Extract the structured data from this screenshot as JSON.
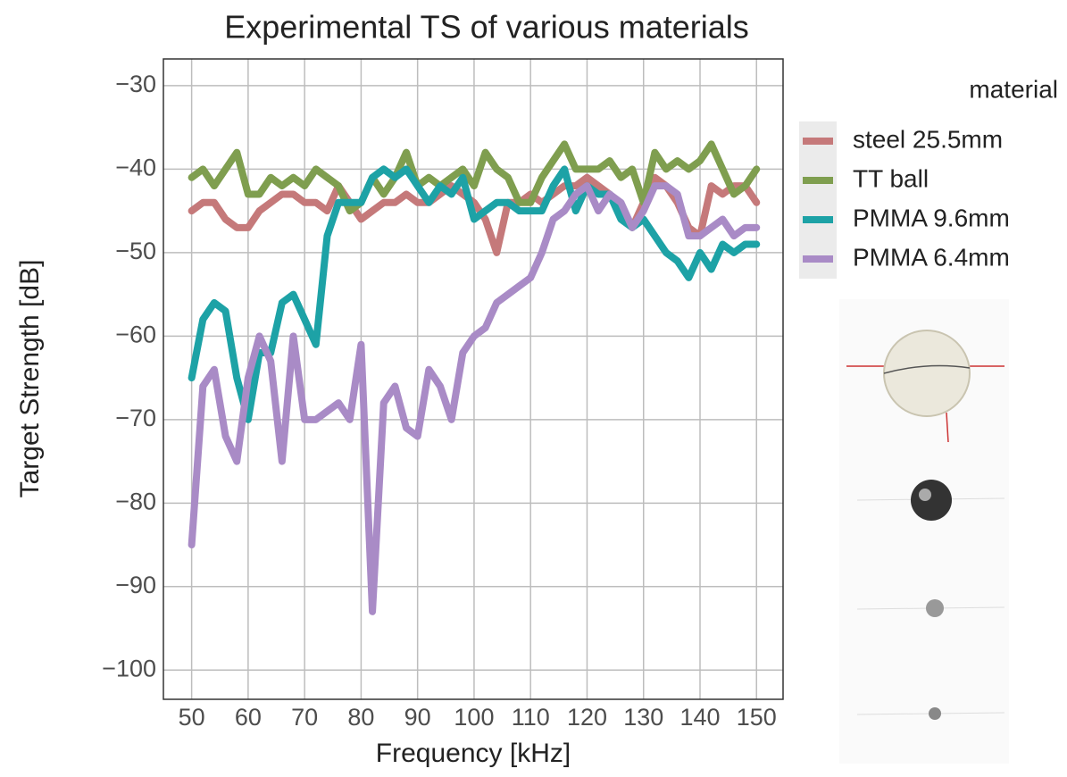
{
  "chart_data": {
    "type": "line",
    "title": "Experimental TS of various materials",
    "x_label": "Frequency [kHz]",
    "y_label": "Target Strength [dB]",
    "legend_title": "material",
    "grid": true,
    "xlim": [
      45,
      154.7
    ],
    "ylim": [
      -103.5,
      -26.8
    ],
    "xticks": [
      50,
      60,
      70,
      80,
      90,
      100,
      110,
      120,
      130,
      140,
      150
    ],
    "yticks": [
      {
        "value": -30,
        "label": "−30"
      },
      {
        "value": -40,
        "label": "−40"
      },
      {
        "value": -50,
        "label": "−50"
      },
      {
        "value": -60,
        "label": "−60"
      },
      {
        "value": -70,
        "label": "−70"
      },
      {
        "value": -80,
        "label": "−80"
      },
      {
        "value": -90,
        "label": "−90"
      },
      {
        "value": -100,
        "label": "−100"
      }
    ],
    "x": [
      50,
      52,
      54,
      56,
      58,
      60,
      62,
      64,
      66,
      68,
      70,
      72,
      74,
      76,
      78,
      80,
      82,
      84,
      86,
      88,
      90,
      92,
      94,
      96,
      98,
      100,
      102,
      104,
      106,
      108,
      110,
      112,
      114,
      116,
      118,
      120,
      122,
      124,
      126,
      128,
      130,
      132,
      134,
      136,
      138,
      140,
      142,
      144,
      146,
      148,
      150
    ],
    "series": [
      {
        "name": "steel 25.5mm",
        "color": "#c5797a",
        "values": [
          -45,
          -44,
          -44,
          -46,
          -47,
          -47,
          -45,
          -44,
          -43,
          -43,
          -44,
          -44,
          -45,
          -42,
          -44,
          -46,
          -45,
          -44,
          -44,
          -43,
          -44,
          -44,
          -43,
          -42,
          -43,
          -44,
          -46,
          -50,
          -44,
          -44,
          -43,
          -44,
          -43,
          -42,
          -42,
          -41,
          -42,
          -43,
          -45,
          -47,
          -44,
          -41,
          -42,
          -44,
          -47,
          -48,
          -42,
          -43,
          -42,
          -42,
          -44
        ]
      },
      {
        "name": "TT ball",
        "color": "#7f9e4f",
        "values": [
          -41,
          -40,
          -42,
          -40,
          -38,
          -43,
          -43,
          -41,
          -42,
          -41,
          -42,
          -40,
          -41,
          -42,
          -45,
          -44,
          -41,
          -43,
          -41,
          -38,
          -42,
          -41,
          -42,
          -41,
          -40,
          -42,
          -38,
          -40,
          -41,
          -44,
          -44,
          -41,
          -39,
          -37,
          -40,
          -40,
          -40,
          -39,
          -41,
          -40,
          -44,
          -38,
          -40,
          -39,
          -40,
          -39,
          -37,
          -40,
          -43,
          -42,
          -40
        ]
      },
      {
        "name": "PMMA 9.6mm",
        "color": "#1da2a6",
        "values": [
          -65,
          -58,
          -56,
          -57,
          -65,
          -70,
          -62,
          -62,
          -56,
          -55,
          -58,
          -61,
          -48,
          -44,
          -44,
          -44,
          -41,
          -40,
          -41,
          -40,
          -42,
          -44,
          -42,
          -43,
          -41,
          -46,
          -45,
          -44,
          -44,
          -45,
          -45,
          -45,
          -42,
          -40,
          -45,
          -42,
          -43,
          -43,
          -46,
          -47,
          -46,
          -48,
          -50,
          -51,
          -53,
          -50,
          -52,
          -49,
          -50,
          -49,
          -49
        ]
      },
      {
        "name": "PMMA 6.4mm",
        "color": "#a98bc6",
        "values": [
          -85,
          -66,
          -64,
          -72,
          -75,
          -65,
          -60,
          -63,
          -75,
          -60,
          -70,
          -70,
          -69,
          -68,
          -70,
          -61,
          -93,
          -68,
          -66,
          -71,
          -72,
          -64,
          -66,
          -70,
          -62,
          -60,
          -59,
          -56,
          -55,
          -54,
          -53,
          -50,
          -46,
          -45,
          -43,
          -42,
          -45,
          -43,
          -44,
          -47,
          -45,
          -42,
          -42,
          -43,
          -48,
          -48,
          -47,
          -46,
          -48,
          -47,
          -47
        ]
      }
    ]
  }
}
